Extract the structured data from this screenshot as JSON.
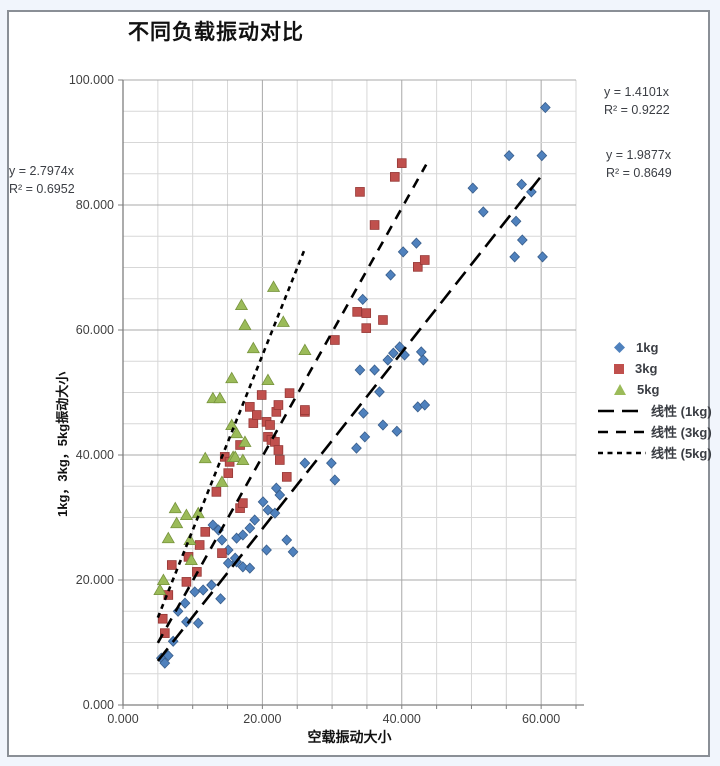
{
  "window": {
    "background": "#f1f5fc",
    "frame_border": "#8a8f96"
  },
  "chart": {
    "title": "不同负载振动对比",
    "x_axis_title": "空载振动大小",
    "y_axis_title": "1kg，3kg，5kg振动大小"
  },
  "chart_data": {
    "type": "scatter",
    "title": "不同负载振动对比",
    "xlabel": "空载振动大小",
    "ylabel": "1kg，3kg，5kg振动大小",
    "xlim": [
      0,
      65
    ],
    "ylim": [
      0,
      100
    ],
    "grid": {
      "minor_step": 5,
      "major_step": 20,
      "minor_color": "#d7d7d7",
      "major_color": "#a8a8a8",
      "axis_color": "#7f7f7f",
      "label_color": "#3f3f3f"
    },
    "x_ticks": [
      {
        "value": 0,
        "label": "0.000"
      },
      {
        "value": 20,
        "label": "20.000"
      },
      {
        "value": 40,
        "label": "40.000"
      },
      {
        "value": 60,
        "label": "60.000"
      }
    ],
    "y_ticks": [
      {
        "value": 0,
        "label": "0.000"
      },
      {
        "value": 20,
        "label": "20.000"
      },
      {
        "value": 40,
        "label": "40.000"
      },
      {
        "value": 60,
        "label": "60.000"
      },
      {
        "value": 80,
        "label": "80.000"
      },
      {
        "value": 100,
        "label": "100.000"
      }
    ],
    "series": [
      {
        "name": "1kg",
        "marker": "diamond",
        "color": "#4F81BD",
        "edge": "#385D8A",
        "points": [
          [
            5.5,
            7.5
          ],
          [
            6.0,
            6.7
          ],
          [
            6.5,
            7.9
          ],
          [
            7.2,
            10.2
          ],
          [
            7.9,
            15.0
          ],
          [
            8.9,
            16.3
          ],
          [
            9.1,
            13.3
          ],
          [
            10.3,
            18.1
          ],
          [
            10.8,
            13.1
          ],
          [
            11.5,
            18.4
          ],
          [
            12.7,
            19.2
          ],
          [
            14.0,
            17.0
          ],
          [
            15.1,
            22.7
          ],
          [
            16.3,
            22.9
          ],
          [
            17.2,
            22.1
          ],
          [
            18.2,
            21.9
          ],
          [
            12.9,
            28.8
          ],
          [
            13.7,
            28.0
          ],
          [
            14.2,
            26.4
          ],
          [
            15.1,
            24.8
          ],
          [
            16.1,
            23.5
          ],
          [
            16.3,
            26.7
          ],
          [
            17.2,
            27.2
          ],
          [
            18.2,
            28.3
          ],
          [
            18.9,
            29.6
          ],
          [
            20.1,
            32.5
          ],
          [
            20.6,
            24.8
          ],
          [
            20.8,
            31.2
          ],
          [
            21.8,
            30.7
          ],
          [
            22.0,
            34.7
          ],
          [
            22.5,
            33.6
          ],
          [
            23.5,
            26.4
          ],
          [
            24.4,
            24.5
          ],
          [
            26.1,
            38.7
          ],
          [
            29.9,
            38.7
          ],
          [
            30.4,
            36.0
          ],
          [
            33.5,
            41.1
          ],
          [
            34.5,
            46.7
          ],
          [
            34.7,
            42.9
          ],
          [
            36.8,
            50.1
          ],
          [
            37.3,
            44.8
          ],
          [
            39.3,
            43.8
          ],
          [
            34.0,
            53.6
          ],
          [
            34.4,
            64.9
          ],
          [
            36.1,
            53.6
          ],
          [
            38.0,
            55.2
          ],
          [
            38.8,
            56.3
          ],
          [
            39.7,
            57.3
          ],
          [
            40.4,
            56.0
          ],
          [
            42.3,
            47.7
          ],
          [
            42.8,
            56.5
          ],
          [
            43.1,
            55.2
          ],
          [
            43.3,
            48.0
          ],
          [
            38.4,
            68.8
          ],
          [
            40.2,
            72.5
          ],
          [
            42.1,
            73.9
          ],
          [
            50.2,
            82.7
          ],
          [
            51.7,
            78.9
          ],
          [
            55.4,
            87.9
          ],
          [
            56.2,
            71.7
          ],
          [
            56.4,
            77.4
          ],
          [
            57.2,
            83.3
          ],
          [
            57.3,
            74.4
          ],
          [
            58.6,
            82.1
          ],
          [
            60.1,
            87.9
          ],
          [
            60.2,
            71.7
          ],
          [
            60.6,
            95.6
          ]
        ]
      },
      {
        "name": "3kg",
        "marker": "square",
        "color": "#C0504D",
        "edge": "#953735",
        "points": [
          [
            5.7,
            13.8
          ],
          [
            6.0,
            11.5
          ],
          [
            6.5,
            17.6
          ],
          [
            7.0,
            22.4
          ],
          [
            9.1,
            19.7
          ],
          [
            9.4,
            23.7
          ],
          [
            10.6,
            21.3
          ],
          [
            11.0,
            25.6
          ],
          [
            11.8,
            27.7
          ],
          [
            13.4,
            34.1
          ],
          [
            14.2,
            24.3
          ],
          [
            14.6,
            39.7
          ],
          [
            15.1,
            37.1
          ],
          [
            15.3,
            38.9
          ],
          [
            16.8,
            31.5
          ],
          [
            16.8,
            41.6
          ],
          [
            17.2,
            32.3
          ],
          [
            18.2,
            47.7
          ],
          [
            18.7,
            45.1
          ],
          [
            19.2,
            46.4
          ],
          [
            19.9,
            49.6
          ],
          [
            20.6,
            45.3
          ],
          [
            20.8,
            42.9
          ],
          [
            21.1,
            44.8
          ],
          [
            21.3,
            42.4
          ],
          [
            21.8,
            42.1
          ],
          [
            22.0,
            46.9
          ],
          [
            22.3,
            40.8
          ],
          [
            22.3,
            48.0
          ],
          [
            22.5,
            39.2
          ],
          [
            23.5,
            36.5
          ],
          [
            23.9,
            49.9
          ],
          [
            26.1,
            46.9
          ],
          [
            26.1,
            47.2
          ],
          [
            30.4,
            58.4
          ],
          [
            33.6,
            62.9
          ],
          [
            34.9,
            60.3
          ],
          [
            34.9,
            62.7
          ],
          [
            37.3,
            61.6
          ],
          [
            34.0,
            82.1
          ],
          [
            36.1,
            76.8
          ],
          [
            39.0,
            84.5
          ],
          [
            40.0,
            86.7
          ],
          [
            42.3,
            70.1
          ],
          [
            43.3,
            71.2
          ]
        ]
      },
      {
        "name": "5kg",
        "marker": "triangle",
        "color": "#9BBB59",
        "edge": "#76923C",
        "points": [
          [
            5.3,
            18.4
          ],
          [
            5.8,
            20.0
          ],
          [
            6.5,
            26.7
          ],
          [
            7.5,
            31.5
          ],
          [
            7.7,
            29.1
          ],
          [
            9.1,
            30.4
          ],
          [
            9.6,
            26.4
          ],
          [
            9.8,
            23.2
          ],
          [
            10.8,
            30.7
          ],
          [
            11.8,
            39.5
          ],
          [
            12.9,
            49.1
          ],
          [
            13.9,
            49.1
          ],
          [
            14.2,
            35.7
          ],
          [
            15.6,
            44.8
          ],
          [
            15.8,
            39.7
          ],
          [
            16.1,
            39.7
          ],
          [
            16.3,
            43.5
          ],
          [
            17.2,
            39.2
          ],
          [
            17.5,
            42.1
          ],
          [
            15.6,
            52.3
          ],
          [
            17.0,
            64.0
          ],
          [
            17.5,
            60.8
          ],
          [
            18.7,
            57.1
          ],
          [
            20.8,
            52.0
          ],
          [
            21.6,
            66.9
          ],
          [
            23.0,
            61.3
          ],
          [
            26.1,
            56.8
          ]
        ]
      }
    ],
    "trendlines": [
      {
        "name": "线性 (1kg)",
        "slope": 1.4101,
        "equation": "y = 1.4101x",
        "r2": "R² = 0.9222",
        "x_range": [
          5,
          60
        ],
        "dash": "long",
        "color": "#000000"
      },
      {
        "name": "线性 (3kg)",
        "slope": 1.9877,
        "equation": "y = 1.9877x",
        "r2": "R² = 0.8649",
        "x_range": [
          5,
          43.5
        ],
        "dash": "medium",
        "color": "#000000"
      },
      {
        "name": "线性 (5kg)",
        "slope": 2.7974,
        "equation": "y = 2.7974x",
        "r2": "R² = 0.6952",
        "x_range": [
          5,
          26
        ],
        "dash": "short",
        "color": "#000000"
      }
    ],
    "legend": {
      "position": "right",
      "items": [
        "1kg",
        "3kg",
        "5kg",
        "线性 (1kg)",
        "线性 (3kg)",
        "线性 (5kg)"
      ]
    }
  }
}
